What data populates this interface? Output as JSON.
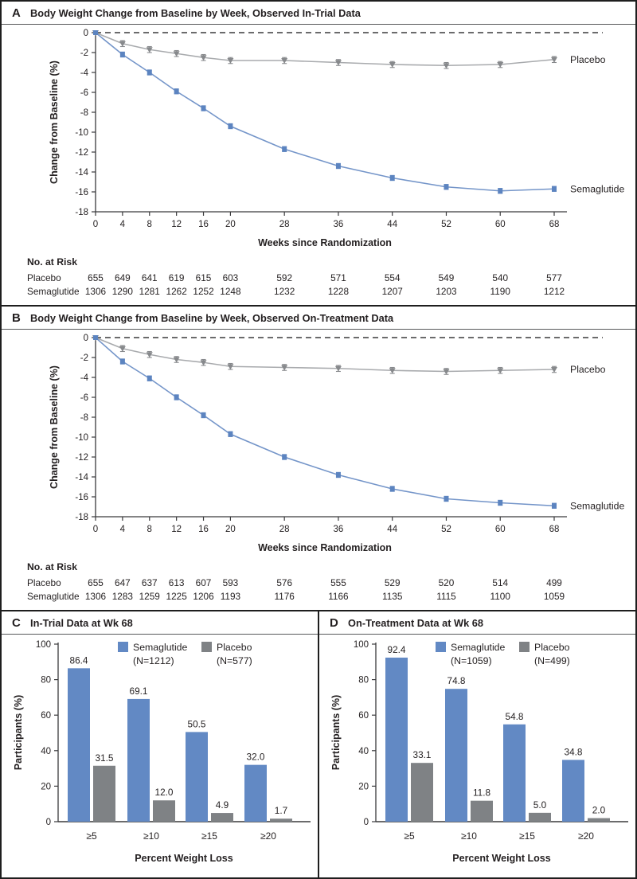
{
  "colors": {
    "semaglutide_line": "#7495c9",
    "semaglutide_marker": "#5c84c0",
    "semaglutide_bar": "#6289c4",
    "placebo_line": "#a8aaad",
    "placebo_marker": "#87898c",
    "placebo_bar": "#7f8285",
    "axis": "#3a3a3c",
    "dashed_line": "#3a3a3c",
    "text": "#231f20"
  },
  "chart_data": [
    {
      "type": "line",
      "panel_letter": "A",
      "title": "Body Weight Change from Baseline by Week, Observed In-Trial Data",
      "xlabel": "Weeks since Randomization",
      "ylabel": "Change from Baseline (%)",
      "ylim": [
        -18,
        0
      ],
      "yticks": [
        0,
        -2,
        -4,
        -6,
        -8,
        -10,
        -12,
        -14,
        -16,
        -18
      ],
      "x": [
        0,
        4,
        8,
        12,
        16,
        20,
        28,
        36,
        44,
        52,
        60,
        68
      ],
      "series": [
        {
          "name": "Placebo",
          "values": [
            0,
            -1.1,
            -1.7,
            -2.1,
            -2.5,
            -2.8,
            -2.8,
            -3.0,
            -3.2,
            -3.3,
            -3.2,
            -2.7
          ],
          "err": 0.3
        },
        {
          "name": "Semaglutide",
          "values": [
            0,
            -2.2,
            -4.0,
            -5.9,
            -7.6,
            -9.4,
            -11.7,
            -13.4,
            -14.6,
            -15.5,
            -15.9,
            -15.7
          ],
          "err": 0.25
        }
      ],
      "risk_table": {
        "header": "No. at Risk",
        "rows": [
          {
            "label": "Placebo",
            "values": [
              655,
              649,
              641,
              619,
              615,
              603,
              592,
              571,
              554,
              549,
              540,
              577
            ]
          },
          {
            "label": "Semaglutide",
            "values": [
              1306,
              1290,
              1281,
              1262,
              1252,
              1248,
              1232,
              1228,
              1207,
              1203,
              1190,
              1212
            ]
          }
        ]
      }
    },
    {
      "type": "line",
      "panel_letter": "B",
      "title": "Body Weight Change from Baseline by Week, Observed On-Treatment Data",
      "xlabel": "Weeks since Randomization",
      "ylabel": "Change from Baseline (%)",
      "ylim": [
        -18,
        0
      ],
      "yticks": [
        0,
        -2,
        -4,
        -6,
        -8,
        -10,
        -12,
        -14,
        -16,
        -18
      ],
      "x": [
        0,
        4,
        8,
        12,
        16,
        20,
        28,
        36,
        44,
        52,
        60,
        68
      ],
      "series": [
        {
          "name": "Placebo",
          "values": [
            0,
            -1.1,
            -1.7,
            -2.2,
            -2.5,
            -2.9,
            -3.0,
            -3.1,
            -3.3,
            -3.4,
            -3.3,
            -3.2
          ],
          "err": 0.3
        },
        {
          "name": "Semaglutide",
          "values": [
            0,
            -2.4,
            -4.1,
            -6.0,
            -7.8,
            -9.7,
            -12.0,
            -13.8,
            -15.2,
            -16.2,
            -16.6,
            -16.9
          ],
          "err": 0.25
        }
      ],
      "risk_table": {
        "header": "No. at Risk",
        "rows": [
          {
            "label": "Placebo",
            "values": [
              655,
              647,
              637,
              613,
              607,
              593,
              576,
              555,
              529,
              520,
              514,
              499
            ]
          },
          {
            "label": "Semaglutide",
            "values": [
              1306,
              1283,
              1259,
              1225,
              1206,
              1193,
              1176,
              1166,
              1135,
              1115,
              1100,
              1059
            ]
          }
        ]
      }
    },
    {
      "type": "bar",
      "panel_letter": "C",
      "title": "In-Trial Data at Wk 68",
      "xlabel": "Percent Weight Loss",
      "ylabel": "Participants (%)",
      "ylim": [
        0,
        100
      ],
      "yticks": [
        0,
        20,
        40,
        60,
        80,
        100
      ],
      "categories": [
        "≥5",
        "≥10",
        "≥15",
        "≥20"
      ],
      "series": [
        {
          "name": "Semaglutide",
          "n_label": "(N=1212)",
          "values": [
            86.4,
            69.1,
            50.5,
            32.0
          ],
          "labels": [
            "86.4",
            "69.1",
            "50.5",
            "32.0"
          ]
        },
        {
          "name": "Placebo",
          "n_label": "(N=577)",
          "values": [
            31.5,
            12.0,
            4.9,
            1.7
          ],
          "labels": [
            "31.5",
            "12.0",
            "4.9",
            "1.7"
          ]
        }
      ]
    },
    {
      "type": "bar",
      "panel_letter": "D",
      "title": "On-Treatment Data at Wk 68",
      "xlabel": "Percent Weight Loss",
      "ylabel": "Participants (%)",
      "ylim": [
        0,
        100
      ],
      "yticks": [
        0,
        20,
        40,
        60,
        80,
        100
      ],
      "categories": [
        "≥5",
        "≥10",
        "≥15",
        "≥20"
      ],
      "series": [
        {
          "name": "Semaglutide",
          "n_label": "(N=1059)",
          "values": [
            92.4,
            74.8,
            54.8,
            34.8
          ],
          "labels": [
            "92.4",
            "74.8",
            "54.8",
            "34.8"
          ]
        },
        {
          "name": "Placebo",
          "n_label": "(N=499)",
          "values": [
            33.1,
            11.8,
            5.0,
            2.0
          ],
          "labels": [
            "33.1",
            "11.8",
            "5.0",
            "2.0"
          ]
        }
      ]
    }
  ]
}
